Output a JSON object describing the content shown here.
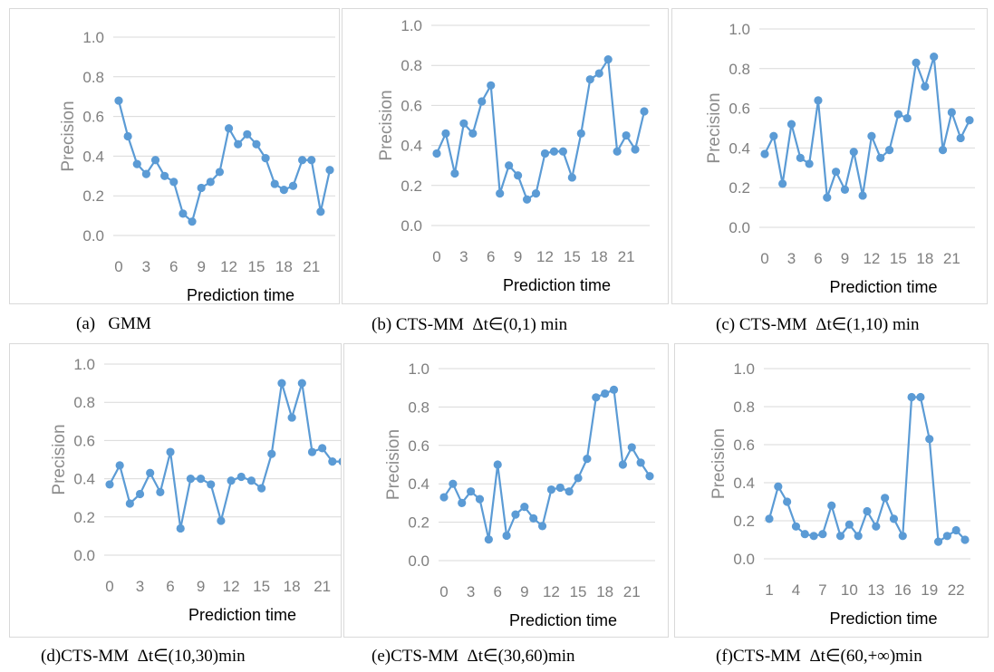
{
  "chart_data": [
    {
      "type": "line",
      "caption": "(a)   GMM",
      "xlabel": "Prediction time",
      "ylabel": "Precision",
      "ylim": [
        0,
        1
      ],
      "yticks": [
        "0.0",
        "0.2",
        "0.4",
        "0.6",
        "0.8",
        "1.0"
      ],
      "x": [
        0,
        1,
        2,
        3,
        4,
        5,
        6,
        7,
        8,
        9,
        10,
        11,
        12,
        13,
        14,
        15,
        16,
        17,
        18,
        19,
        20,
        21,
        22,
        23
      ],
      "xtick_labels": [
        "0",
        "3",
        "6",
        "9",
        "12",
        "15",
        "18",
        "21"
      ],
      "series": [
        {
          "values": [
            0.68,
            0.5,
            0.36,
            0.31,
            0.38,
            0.3,
            0.27,
            0.11,
            0.07,
            0.24,
            0.27,
            0.32,
            0.54,
            0.46,
            0.51,
            0.46,
            0.39,
            0.26,
            0.23,
            0.25,
            0.38,
            0.38,
            0.12,
            0.33
          ],
          "color": "#5b9bd5"
        }
      ]
    },
    {
      "type": "line",
      "caption": "(b) CTS-MM  Δt∈(0,1) min",
      "xlabel": "Prediction time",
      "ylabel": "Precision",
      "ylim": [
        0,
        1
      ],
      "yticks": [
        "0.0",
        "0.2",
        "0.4",
        "0.6",
        "0.8",
        "1.0"
      ],
      "x": [
        0,
        1,
        2,
        3,
        4,
        5,
        6,
        7,
        8,
        9,
        10,
        11,
        12,
        13,
        14,
        15,
        16,
        17,
        18,
        19,
        20,
        21,
        22,
        23
      ],
      "xtick_labels": [
        "0",
        "3",
        "6",
        "9",
        "12",
        "15",
        "18",
        "21"
      ],
      "series": [
        {
          "values": [
            0.36,
            0.46,
            0.26,
            0.51,
            0.46,
            0.62,
            0.7,
            0.16,
            0.3,
            0.25,
            0.13,
            0.16,
            0.36,
            0.37,
            0.37,
            0.24,
            0.46,
            0.73,
            0.76,
            0.83,
            0.37,
            0.45,
            0.38,
            0.57
          ],
          "color": "#5b9bd5"
        }
      ]
    },
    {
      "type": "line",
      "caption": "(c) CTS-MM  Δt∈(1,10) min",
      "xlabel": "Prediction time",
      "ylabel": "Precision",
      "ylim": [
        0,
        1
      ],
      "yticks": [
        "0.0",
        "0.2",
        "0.4",
        "0.6",
        "0.8",
        "1.0"
      ],
      "x": [
        0,
        1,
        2,
        3,
        4,
        5,
        6,
        7,
        8,
        9,
        10,
        11,
        12,
        13,
        14,
        15,
        16,
        17,
        18,
        19,
        20,
        21,
        22,
        23
      ],
      "xtick_labels": [
        "0",
        "3",
        "6",
        "9",
        "12",
        "15",
        "18",
        "21"
      ],
      "series": [
        {
          "values": [
            0.37,
            0.46,
            0.22,
            0.52,
            0.35,
            0.32,
            0.64,
            0.15,
            0.28,
            0.19,
            0.38,
            0.16,
            0.46,
            0.35,
            0.39,
            0.57,
            0.55,
            0.83,
            0.71,
            0.86,
            0.39,
            0.58,
            0.45,
            0.54
          ],
          "color": "#5b9bd5"
        }
      ]
    },
    {
      "type": "line",
      "caption": "(d)CTS-MM  Δt∈(10,30)min",
      "xlabel": "Prediction time",
      "ylabel": "Precision",
      "ylim": [
        0,
        1
      ],
      "yticks": [
        "0.0",
        "0.2",
        "0.4",
        "0.6",
        "0.8",
        "1.0"
      ],
      "x": [
        0,
        1,
        2,
        3,
        4,
        5,
        6,
        7,
        8,
        9,
        10,
        11,
        12,
        13,
        14,
        15,
        16,
        17,
        18,
        19,
        20,
        21,
        22,
        23
      ],
      "xtick_labels": [
        "0",
        "3",
        "6",
        "9",
        "12",
        "15",
        "18",
        "21"
      ],
      "series": [
        {
          "values": [
            0.37,
            0.47,
            0.27,
            0.32,
            0.43,
            0.33,
            0.54,
            0.14,
            0.4,
            0.4,
            0.37,
            0.18,
            0.39,
            0.41,
            0.39,
            0.35,
            0.53,
            0.9,
            0.72,
            0.9,
            0.54,
            0.56,
            0.49,
            0.49
          ],
          "color": "#5b9bd5"
        }
      ]
    },
    {
      "type": "line",
      "caption": "(e)CTS-MM  Δt∈(30,60)min",
      "xlabel": "Prediction time",
      "ylabel": "Precision",
      "ylim": [
        0,
        1
      ],
      "yticks": [
        "0.0",
        "0.2",
        "0.4",
        "0.6",
        "0.8",
        "1.0"
      ],
      "x": [
        0,
        1,
        2,
        3,
        4,
        5,
        6,
        7,
        8,
        9,
        10,
        11,
        12,
        13,
        14,
        15,
        16,
        17,
        18,
        19,
        20,
        21,
        22,
        23
      ],
      "xtick_labels": [
        "0",
        "3",
        "6",
        "9",
        "12",
        "15",
        "18",
        "21"
      ],
      "series": [
        {
          "values": [
            0.33,
            0.4,
            0.3,
            0.36,
            0.32,
            0.11,
            0.5,
            0.13,
            0.24,
            0.28,
            0.22,
            0.18,
            0.37,
            0.38,
            0.36,
            0.43,
            0.53,
            0.85,
            0.87,
            0.89,
            0.5,
            0.59,
            0.51,
            0.44
          ],
          "color": "#5b9bd5"
        }
      ]
    },
    {
      "type": "line",
      "caption": "(f)CTS-MM  Δt∈(60,+∞)min",
      "xlabel": "Prediction time",
      "ylabel": "Precision",
      "ylim": [
        0,
        1
      ],
      "yticks": [
        "0.0",
        "0.2",
        "0.4",
        "0.6",
        "0.8",
        "1.0"
      ],
      "x": [
        1,
        2,
        3,
        4,
        5,
        6,
        7,
        8,
        9,
        10,
        11,
        12,
        13,
        14,
        15,
        16,
        17,
        18,
        19,
        20,
        21,
        22,
        23
      ],
      "xtick_labels": [
        "1",
        "4",
        "7",
        "10",
        "13",
        "16",
        "19",
        "22"
      ],
      "series": [
        {
          "values": [
            0.21,
            0.38,
            0.3,
            0.17,
            0.13,
            0.12,
            0.13,
            0.28,
            0.12,
            0.18,
            0.12,
            0.25,
            0.17,
            0.32,
            0.21,
            0.12,
            0.85,
            0.85,
            0.63,
            0.09,
            0.12,
            0.15,
            0.1
          ],
          "color": "#5b9bd5"
        }
      ]
    }
  ]
}
